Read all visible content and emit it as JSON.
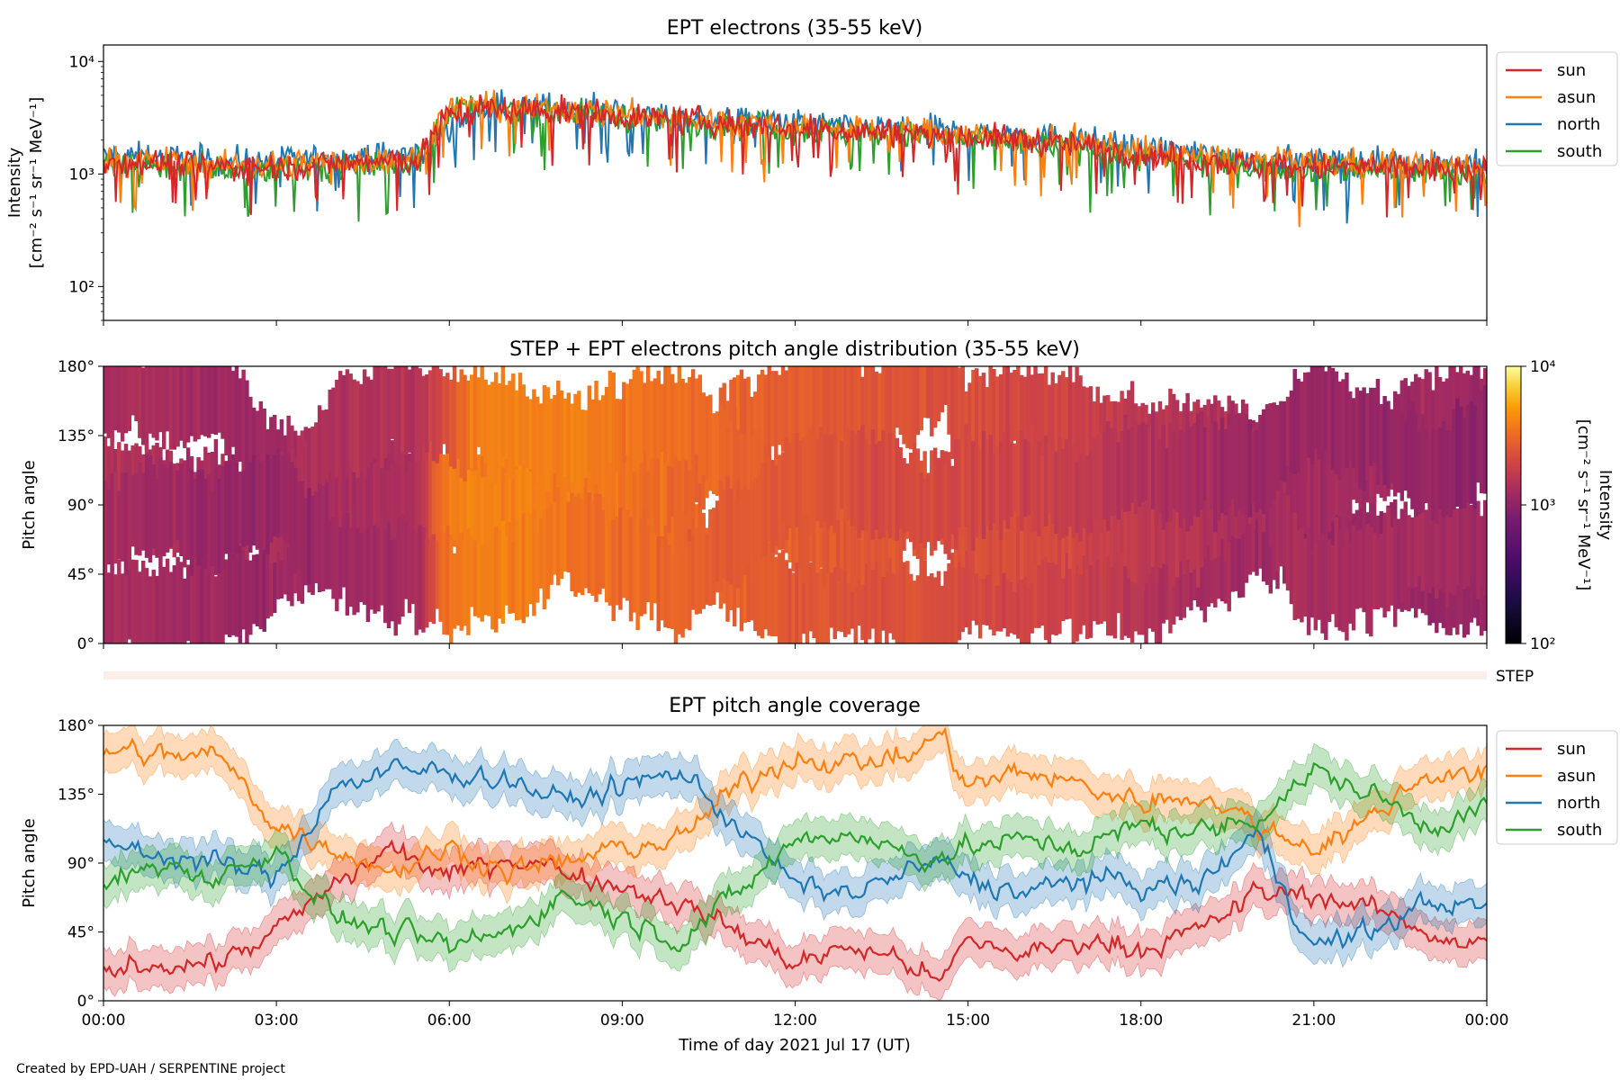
{
  "footer": "Created by EPD-UAH / SERPENTINE project",
  "colors": {
    "sun": "#d62728",
    "asun": "#ff7f0e",
    "north": "#1f77b4",
    "south": "#2ca02c",
    "step_strip": "#fdeee9"
  },
  "chart_data": [
    {
      "type": "line",
      "title": "EPT electrons (35-55 keV)",
      "ylabel": "Intensity",
      "ylabel_units": "[cm⁻² s⁻¹ sr⁻¹ MeV⁻¹]",
      "yscale": "log",
      "ylim": [
        50,
        14000
      ],
      "yticks": [
        {
          "value": 100,
          "label": "10²"
        },
        {
          "value": 1000,
          "label": "10³"
        },
        {
          "value": 10000,
          "label": "10⁴"
        }
      ],
      "xlim": [
        "00:00",
        "24:00"
      ],
      "legend": "outside-right-top",
      "series": [
        {
          "name": "sun",
          "x": [
            "00:00",
            "01:00",
            "02:00",
            "03:00",
            "04:00",
            "05:00",
            "05:30",
            "06:00",
            "06:30",
            "07:00",
            "08:00",
            "09:00",
            "10:00",
            "11:00",
            "12:00",
            "13:00",
            "14:00",
            "15:00",
            "16:00",
            "17:00",
            "18:00",
            "19:00",
            "20:00",
            "21:00",
            "22:00",
            "23:00",
            "24:00"
          ],
          "values": [
            1300,
            1250,
            1150,
            1150,
            1250,
            1300,
            1350,
            3500,
            3800,
            3800,
            3600,
            3300,
            3000,
            2800,
            2600,
            2400,
            2300,
            2150,
            2000,
            1800,
            1500,
            1350,
            1200,
            1150,
            1150,
            1100,
            1050
          ]
        },
        {
          "name": "asun",
          "x": [
            "00:00",
            "01:00",
            "02:00",
            "03:00",
            "04:00",
            "05:00",
            "05:30",
            "06:00",
            "06:30",
            "07:00",
            "08:00",
            "09:00",
            "10:00",
            "11:00",
            "12:00",
            "13:00",
            "14:00",
            "15:00",
            "16:00",
            "17:00",
            "18:00",
            "19:00",
            "20:00",
            "21:00",
            "22:00",
            "23:00",
            "24:00"
          ],
          "values": [
            1350,
            1300,
            1200,
            1200,
            1300,
            1350,
            1400,
            3800,
            4000,
            3900,
            3700,
            3400,
            3100,
            2900,
            2700,
            2500,
            2400,
            2250,
            2100,
            1900,
            1600,
            1450,
            1300,
            1250,
            1250,
            1200,
            1150
          ]
        },
        {
          "name": "north",
          "x": [
            "00:00",
            "01:00",
            "02:00",
            "03:00",
            "04:00",
            "05:00",
            "05:30",
            "06:00",
            "06:30",
            "07:00",
            "08:00",
            "09:00",
            "10:00",
            "11:00",
            "12:00",
            "13:00",
            "14:00",
            "15:00",
            "16:00",
            "17:00",
            "18:00",
            "19:00",
            "20:00",
            "21:00",
            "22:00",
            "23:00",
            "24:00"
          ],
          "values": [
            1450,
            1400,
            1300,
            1300,
            1400,
            1450,
            1500,
            2400,
            3800,
            4000,
            3900,
            3500,
            3200,
            3000,
            2800,
            2600,
            2500,
            2350,
            2200,
            2000,
            1650,
            1500,
            1350,
            1300,
            1300,
            1250,
            1200
          ]
        },
        {
          "name": "south",
          "x": [
            "00:00",
            "01:00",
            "02:00",
            "03:00",
            "04:00",
            "05:00",
            "05:30",
            "06:00",
            "06:30",
            "07:00",
            "08:00",
            "09:00",
            "10:00",
            "11:00",
            "12:00",
            "13:00",
            "14:00",
            "15:00",
            "16:00",
            "17:00",
            "18:00",
            "19:00",
            "20:00",
            "21:00",
            "22:00",
            "23:00",
            "24:00"
          ],
          "values": [
            1250,
            1200,
            1100,
            1100,
            1200,
            1250,
            1300,
            3600,
            3900,
            3800,
            3500,
            3200,
            2900,
            2700,
            2500,
            2300,
            2200,
            2050,
            1900,
            1700,
            1400,
            1250,
            1150,
            1100,
            1100,
            1050,
            1000
          ]
        }
      ]
    },
    {
      "type": "heatmap",
      "title": "STEP + EPT electrons pitch angle distribution (35-55 keV)",
      "ylabel": "Pitch angle",
      "ylim": [
        0,
        180
      ],
      "yticks": [
        "0°",
        "45°",
        "90°",
        "135°",
        "180°"
      ],
      "colorbar": {
        "label": "Intensity",
        "units": "[cm⁻² s⁻¹ sr⁻¹ MeV⁻¹]",
        "scale": "log",
        "range": [
          100,
          10000
        ],
        "ticks": [
          {
            "value": 100,
            "label": "10²"
          },
          {
            "value": 1000,
            "label": "10³"
          },
          {
            "value": 10000,
            "label": "10⁴"
          }
        ]
      },
      "note": "pitch-angle coverage bands of the four EPT telescopes colored by intensity"
    },
    {
      "type": "line",
      "title": "EPT pitch angle coverage",
      "ylabel": "Pitch angle",
      "xlabel": "Time of day 2021 Jul 17 (UT)",
      "ylim": [
        0,
        180
      ],
      "yticks": [
        "0°",
        "45°",
        "90°",
        "135°",
        "180°"
      ],
      "xticks": [
        "00:00",
        "03:00",
        "06:00",
        "09:00",
        "12:00",
        "15:00",
        "18:00",
        "21:00",
        "00:00"
      ],
      "step_label": "STEP",
      "legend": "outside-right-top",
      "series": [
        {
          "name": "sun",
          "x": [
            "00:00",
            "01:00",
            "02:00",
            "03:00",
            "04:00",
            "05:00",
            "06:00",
            "07:00",
            "08:00",
            "09:00",
            "10:00",
            "11:00",
            "12:00",
            "13:00",
            "14:00",
            "14:30",
            "15:00",
            "16:00",
            "17:00",
            "18:00",
            "19:00",
            "20:00",
            "21:00",
            "22:00",
            "23:00",
            "24:00"
          ],
          "values": [
            20,
            25,
            25,
            45,
            75,
            100,
            80,
            95,
            85,
            75,
            65,
            45,
            25,
            35,
            25,
            10,
            40,
            30,
            40,
            35,
            45,
            70,
            70,
            60,
            45,
            35
          ]
        },
        {
          "name": "asun",
          "x": [
            "00:00",
            "01:00",
            "02:00",
            "03:00",
            "04:00",
            "05:00",
            "06:00",
            "07:00",
            "08:00",
            "09:00",
            "10:00",
            "11:00",
            "12:00",
            "13:00",
            "14:00",
            "14:30",
            "15:00",
            "16:00",
            "17:00",
            "18:00",
            "19:00",
            "20:00",
            "21:00",
            "22:00",
            "23:00",
            "24:00"
          ],
          "values": [
            165,
            160,
            160,
            115,
            100,
            85,
            100,
            85,
            90,
            100,
            105,
            140,
            160,
            155,
            160,
            175,
            140,
            150,
            140,
            130,
            135,
            115,
            100,
            120,
            150,
            145
          ]
        },
        {
          "name": "north",
          "x": [
            "00:00",
            "01:00",
            "02:00",
            "03:00",
            "04:00",
            "05:00",
            "06:00",
            "07:00",
            "08:00",
            "09:00",
            "10:00",
            "11:00",
            "12:00",
            "13:00",
            "14:00",
            "14:30",
            "15:00",
            "16:00",
            "17:00",
            "18:00",
            "19:00",
            "20:00",
            "21:00",
            "22:00",
            "23:00",
            "24:00"
          ],
          "values": [
            105,
            95,
            90,
            80,
            140,
            150,
            150,
            145,
            130,
            140,
            150,
            115,
            75,
            70,
            85,
            90,
            80,
            70,
            80,
            75,
            75,
            110,
            35,
            45,
            65,
            60
          ]
        },
        {
          "name": "south",
          "x": [
            "00:00",
            "01:00",
            "02:00",
            "03:00",
            "04:00",
            "05:00",
            "06:00",
            "07:00",
            "08:00",
            "09:00",
            "10:00",
            "11:00",
            "12:00",
            "13:00",
            "14:00",
            "14:30",
            "15:00",
            "16:00",
            "17:00",
            "18:00",
            "19:00",
            "20:00",
            "21:00",
            "22:00",
            "23:00",
            "24:00"
          ],
          "values": [
            75,
            90,
            80,
            100,
            55,
            45,
            35,
            45,
            70,
            55,
            40,
            70,
            105,
            110,
            95,
            95,
            100,
            105,
            100,
            115,
            110,
            120,
            150,
            135,
            115,
            125
          ]
        }
      ]
    }
  ]
}
